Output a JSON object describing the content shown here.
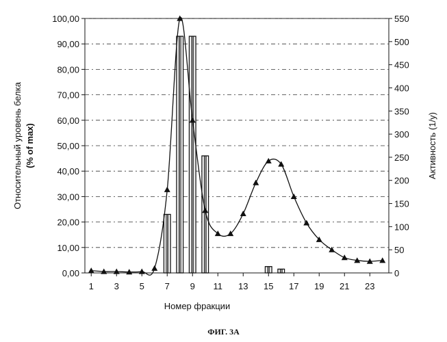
{
  "figure_caption": "ФИГ. 3А",
  "chart_data": {
    "type": "bar",
    "title": "",
    "xlabel": "Номер фракции",
    "ylabel_left_line1": "Относительный уровень белка",
    "ylabel_left_line2": "(% of max)",
    "ylabel_right": "Активность (1/у)",
    "x_ticks": [
      "1",
      "3",
      "5",
      "7",
      "9",
      "11",
      "13",
      "15",
      "17",
      "19",
      "21",
      "23"
    ],
    "y_left_ticks": [
      "0,00",
      "10,00",
      "20,00",
      "30,00",
      "40,00",
      "50,00",
      "60,00",
      "70,00",
      "80,00",
      "90,00",
      "100,00"
    ],
    "y_right_ticks": [
      "0",
      "50",
      "100",
      "150",
      "200",
      "250",
      "300",
      "350",
      "400",
      "450",
      "500",
      "550"
    ],
    "xlim": [
      0.5,
      24.5
    ],
    "ylim_left": [
      0,
      100
    ],
    "ylim_right": [
      0,
      550
    ],
    "grid": true,
    "series": [
      {
        "axis": "left",
        "style": "bar",
        "x": [
          7,
          8,
          9,
          10,
          15,
          16
        ],
        "values": [
          23,
          93,
          93,
          46,
          2.5,
          1.5
        ]
      },
      {
        "axis": "right",
        "style": "line-triangle-markers",
        "x": [
          1,
          2,
          3,
          4,
          5,
          6,
          7,
          8,
          9,
          10,
          11,
          12,
          13,
          14,
          15,
          16,
          17,
          18,
          19,
          20,
          21,
          22,
          23,
          24
        ],
        "values": [
          5,
          3,
          3,
          2,
          3,
          10,
          180,
          550,
          330,
          135,
          85,
          85,
          128,
          195,
          242,
          235,
          165,
          108,
          72,
          50,
          33,
          27,
          25,
          27
        ]
      }
    ]
  }
}
